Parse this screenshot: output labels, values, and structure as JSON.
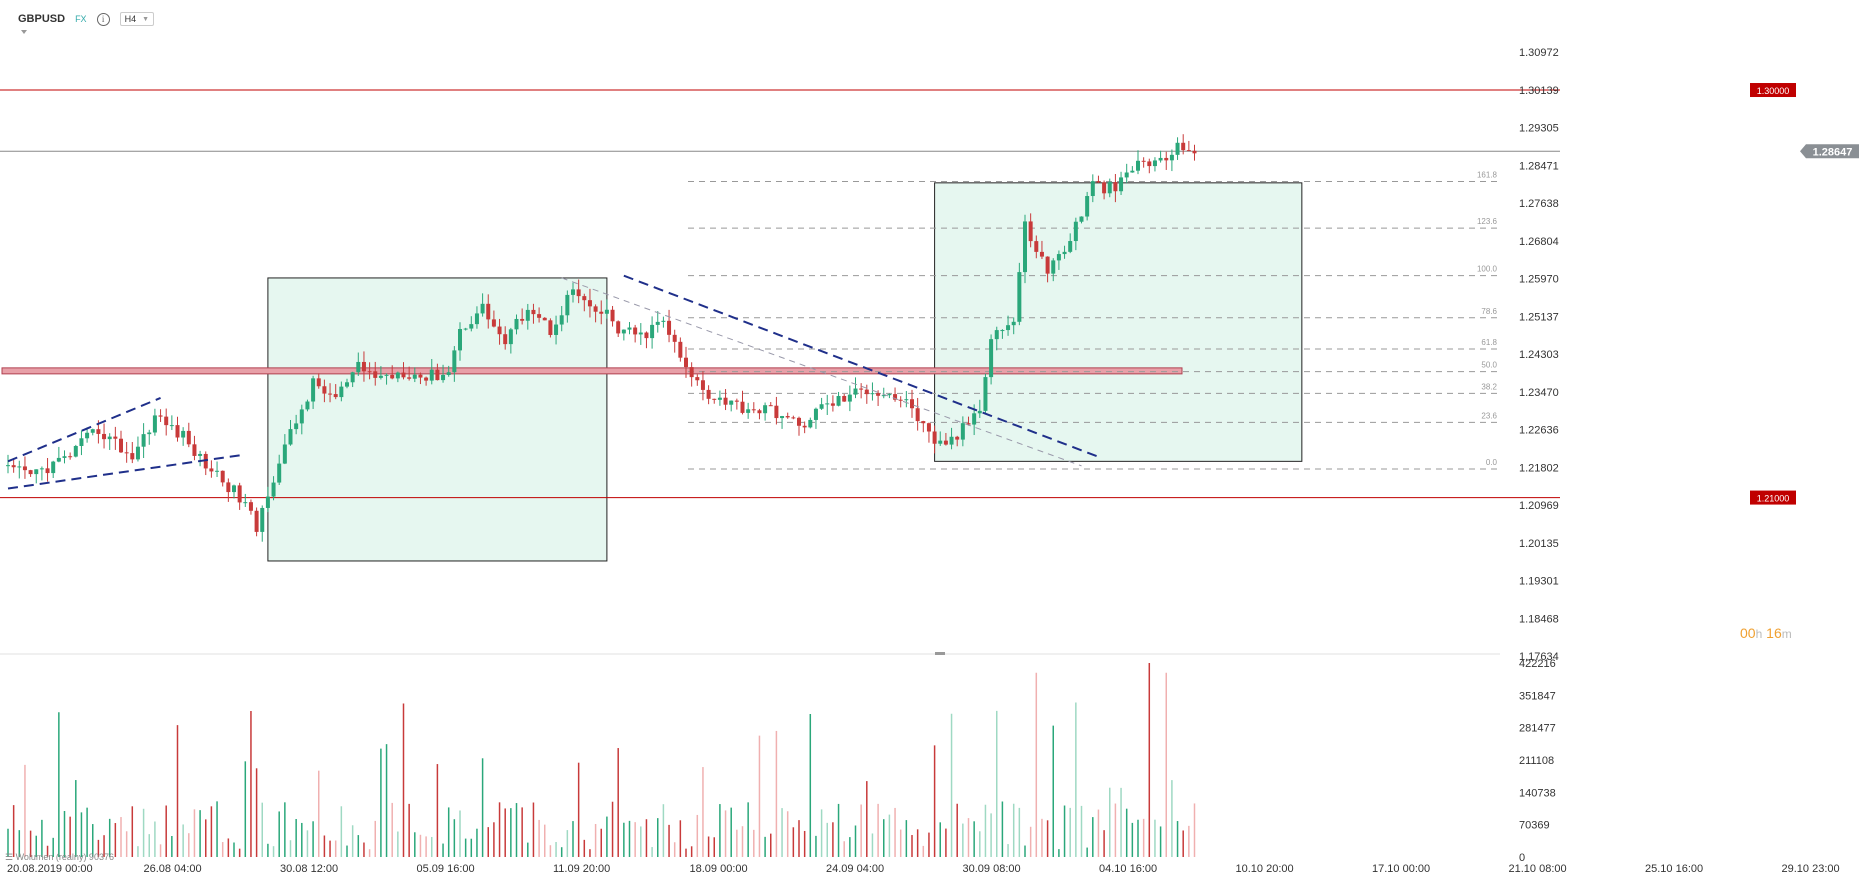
{
  "header": {
    "symbol": "GBPUSD",
    "market": "FX",
    "timeframe": "H4",
    "info_icon": "info-icon",
    "dropdown_icon": "chevron-down-icon"
  },
  "timer": {
    "hours": "00",
    "h_unit": "h",
    "minutes": "16",
    "m_unit": "m"
  },
  "volume_label": "Wolumen (realny) 90376",
  "price_axis_labels": [
    "1.30972",
    "1.30139",
    "1.29305",
    "1.28471",
    "1.27638",
    "1.26804",
    "1.25970",
    "1.25137",
    "1.24303",
    "1.23470",
    "1.22636",
    "1.21802",
    "1.20969",
    "1.20135",
    "1.19301",
    "1.18468",
    "1.17634"
  ],
  "volume_axis_labels": [
    "422216",
    "351847",
    "281477",
    "211108",
    "140738",
    "70369",
    "0"
  ],
  "time_axis_labels": [
    "20.08.2019   00:00",
    "26.08  04:00",
    "30.08  12:00",
    "05.09  16:00",
    "11.09  20:00",
    "18.09  00:00",
    "24.09  04:00",
    "30.09  08:00",
    "04.10  16:00",
    "10.10  20:00",
    "17.10  00:00",
    "21.10  08:00",
    "25.10  16:00",
    "29.10  23:00"
  ],
  "levels": [
    {
      "label": "1.30000",
      "price": 1.3,
      "color": "#c00000"
    },
    {
      "label": "1.28647",
      "price": 1.28647,
      "color": "#888888"
    },
    {
      "label": "1.21000",
      "price": 1.21,
      "color": "#c00000"
    }
  ],
  "fib_labels": [
    "161.8",
    "123.6",
    "100.0",
    "78.6",
    "61.8",
    "50.0",
    "38.2",
    "23.6",
    "0.0"
  ],
  "colors": {
    "up": "#2aa77a",
    "down": "#c83a3a",
    "trend": "#1f2f8a",
    "box_fill": "#e6f7f0",
    "sr_zone": "#e8a0a8"
  },
  "chart_data": {
    "type": "candlestick",
    "title": "GBPUSD",
    "timeframe": "H4",
    "y_range": [
      1.17634,
      1.30972
    ],
    "x_labels": [
      "20.08.2019 00:00",
      "26.08 04:00",
      "30.08 12:00",
      "05.09 16:00",
      "11.09 20:00",
      "18.09 00:00",
      "24.09 04:00",
      "30.09 08:00",
      "04.10 16:00",
      "10.10 20:00",
      "17.10 00:00",
      "21.10 08:00",
      "25.10 16:00",
      "29.10 23:00"
    ],
    "price_keypoints": [
      [
        0,
        1.216
      ],
      [
        4,
        1.215
      ],
      [
        10,
        1.2185
      ],
      [
        16,
        1.225
      ],
      [
        22,
        1.219
      ],
      [
        26,
        1.228
      ],
      [
        31,
        1.2235
      ],
      [
        34,
        1.2185
      ],
      [
        38,
        1.214
      ],
      [
        42,
        1.2085
      ],
      [
        44,
        1.203
      ],
      [
        46,
        1.2115
      ],
      [
        50,
        1.224
      ],
      [
        54,
        1.235
      ],
      [
        58,
        1.232
      ],
      [
        62,
        1.2385
      ],
      [
        66,
        1.2365
      ],
      [
        70,
        1.238
      ],
      [
        74,
        1.2365
      ],
      [
        78,
        1.238
      ],
      [
        80,
        1.247
      ],
      [
        84,
        1.252
      ],
      [
        88,
        1.244
      ],
      [
        92,
        1.2525
      ],
      [
        96,
        1.247
      ],
      [
        100,
        1.256
      ],
      [
        103,
        1.251
      ],
      [
        106,
        1.2505
      ],
      [
        108,
        1.247
      ],
      [
        112,
        1.2455
      ],
      [
        116,
        1.249
      ],
      [
        120,
        1.238
      ],
      [
        124,
        1.233
      ],
      [
        130,
        1.23
      ],
      [
        136,
        1.229
      ],
      [
        140,
        1.2255
      ],
      [
        144,
        1.23
      ],
      [
        148,
        1.232
      ],
      [
        152,
        1.234
      ],
      [
        156,
        1.233
      ],
      [
        160,
        1.23
      ],
      [
        164,
        1.221
      ],
      [
        168,
        1.2235
      ],
      [
        172,
        1.23
      ],
      [
        174,
        1.246
      ],
      [
        178,
        1.249
      ],
      [
        180,
        1.27
      ],
      [
        184,
        1.26
      ],
      [
        188,
        1.267
      ],
      [
        192,
        1.279
      ],
      [
        196,
        1.278
      ],
      [
        200,
        1.284
      ],
      [
        204,
        1.284
      ],
      [
        208,
        1.288
      ],
      [
        210,
        1.2865
      ]
    ],
    "volume": {
      "max": 422216,
      "candles": 211
    },
    "rectangles": [
      {
        "t1": 46,
        "t2": 106,
        "p1": 1.2585,
        "p2": 1.196
      },
      {
        "t1": 164,
        "t2": 229,
        "p1": 1.2795,
        "p2": 1.218
      }
    ],
    "support_resistance_zone": [
      1.237,
      1.2382
    ]
  }
}
